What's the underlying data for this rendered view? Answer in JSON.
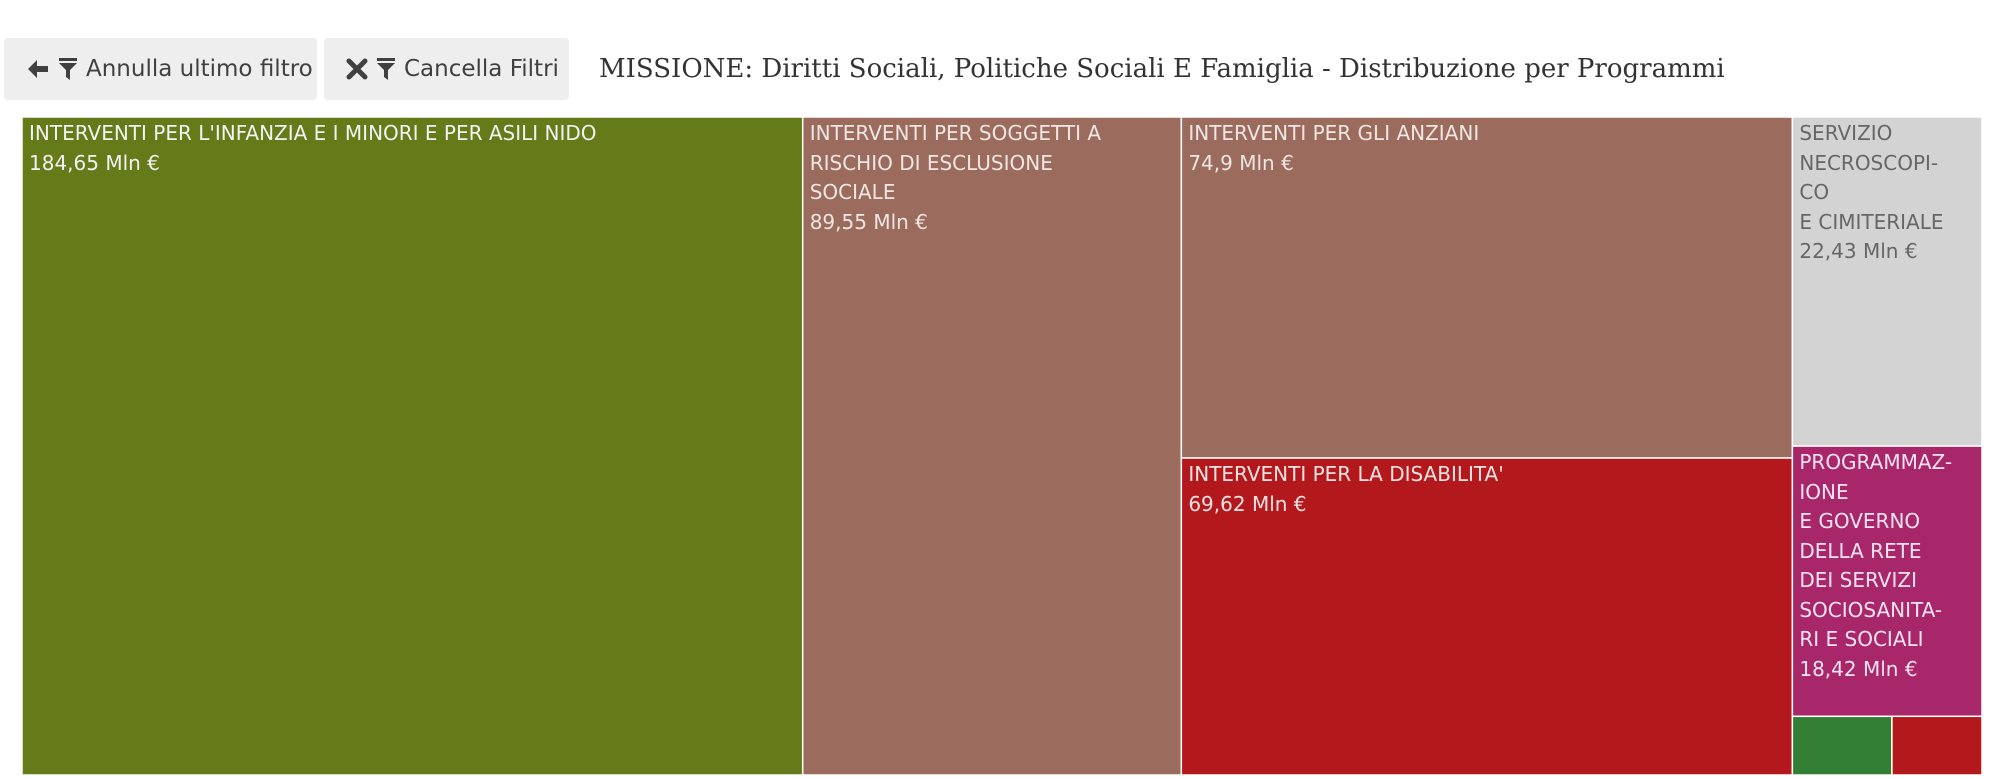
{
  "toolbar": {
    "undo_label": "Annulla ultimo filtro",
    "clear_label": "Cancella Filtri"
  },
  "title": "MISSIONE: Diritti Sociali, Politiche Sociali E Famiglia - Distribuzione per Programmi",
  "chart_data": {
    "type": "treemap",
    "unit": "Mln €",
    "items": [
      {
        "label": "INTERVENTI PER L'INFANZIA E I MINORI E PER ASILI NIDO",
        "display": "INTERVENTI PER L'INFANZIA E I MINORI E PER ASILI NIDO",
        "value": 184.65,
        "value_label": "184,65 Mln €",
        "color": "#657b19",
        "text_color": "#f2f2f2"
      },
      {
        "label": "INTERVENTI PER SOGGETTI A RISCHIO DI ESCLUSIONE SOCIALE",
        "display": "INTERVENTI PER SOGGETTI A\nRISCHIO DI ESCLUSIONE\nSOCIALE",
        "value": 89.55,
        "value_label": "89,55 Mln €",
        "color": "#9b6b5e",
        "text_color": "#f0e6e2"
      },
      {
        "label": "INTERVENTI PER GLI ANZIANI",
        "display": "INTERVENTI PER GLI ANZIANI",
        "value": 74.9,
        "value_label": "74,9 Mln €",
        "color": "#9b6b5e",
        "text_color": "#f0e6e2"
      },
      {
        "label": "INTERVENTI PER LA DISABILITA'",
        "display": "INTERVENTI PER LA DISABILITA'",
        "value": 69.62,
        "value_label": "69,62 Mln €",
        "color": "#b3191c",
        "text_color": "#f5e3e3"
      },
      {
        "label": "SERVIZIO NECROSCOPICO E CIMITERIALE",
        "display": "SERVIZIO\nNECROSCOPI-\nCO\nE CIMITERIALE",
        "value": 22.43,
        "value_label": "22,43 Mln €",
        "color": "#d3d3d3",
        "text_color": "#666666"
      },
      {
        "label": "PROGRAMMAZIONE E GOVERNO DELLA RETE DEI SERVIZI SOCIOSANITARI E SOCIALI",
        "display": "PROGRAMMAZ-\nIONE\nE GOVERNO\nDELLA RETE\nDEI SERVIZI\nSOCIOSANITA-\nRI E SOCIALI",
        "value": 18.42,
        "value_label": "18,42 Mln €",
        "color": "#a8276b",
        "text_color": "#f6e3ee"
      },
      {
        "label": "",
        "display": "",
        "value": 2.1,
        "value_label": "",
        "color": "#327e35",
        "text_color": "#ffffff"
      },
      {
        "label": "",
        "display": "",
        "value": 1.9,
        "value_label": "",
        "color": "#b3191c",
        "text_color": "#ffffff"
      }
    ]
  }
}
